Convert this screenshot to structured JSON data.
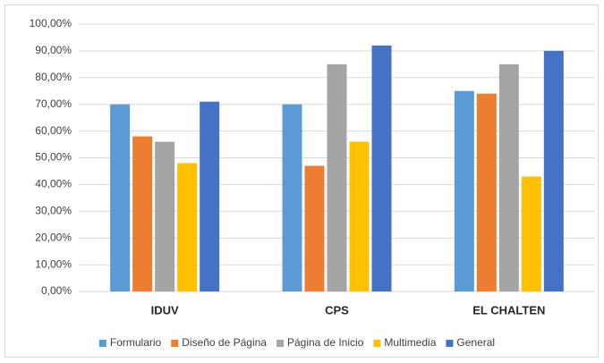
{
  "chart_data": {
    "type": "bar",
    "categories": [
      "IDUV",
      "CPS",
      "EL CHALTEN"
    ],
    "series": [
      {
        "name": "Formulario",
        "color": "#5b9bd5",
        "values": [
          70,
          70,
          75
        ]
      },
      {
        "name": "Diseño de Página",
        "color": "#ed7d31",
        "values": [
          58,
          47,
          74
        ]
      },
      {
        "name": "Página de Inicio",
        "color": "#a5a5a5",
        "values": [
          56,
          85,
          85
        ]
      },
      {
        "name": "Multimedia",
        "color": "#ffc000",
        "values": [
          48,
          56,
          43
        ]
      },
      {
        "name": "General",
        "color": "#4472c4",
        "values": [
          71,
          92,
          90
        ]
      }
    ],
    "ylim": [
      0,
      100
    ],
    "yticks": [
      {
        "value": 0,
        "label": "0,00%"
      },
      {
        "value": 10,
        "label": "10,00%"
      },
      {
        "value": 20,
        "label": "20,00%"
      },
      {
        "value": 30,
        "label": "30,00%"
      },
      {
        "value": 40,
        "label": "40,00%"
      },
      {
        "value": 50,
        "label": "50,00%"
      },
      {
        "value": 60,
        "label": "60,00%"
      },
      {
        "value": 70,
        "label": "70,00%"
      },
      {
        "value": 80,
        "label": "80,00%"
      },
      {
        "value": 90,
        "label": "90,00%"
      },
      {
        "value": 100,
        "label": "100,00%"
      }
    ],
    "grid": true,
    "legend": "bottom"
  }
}
